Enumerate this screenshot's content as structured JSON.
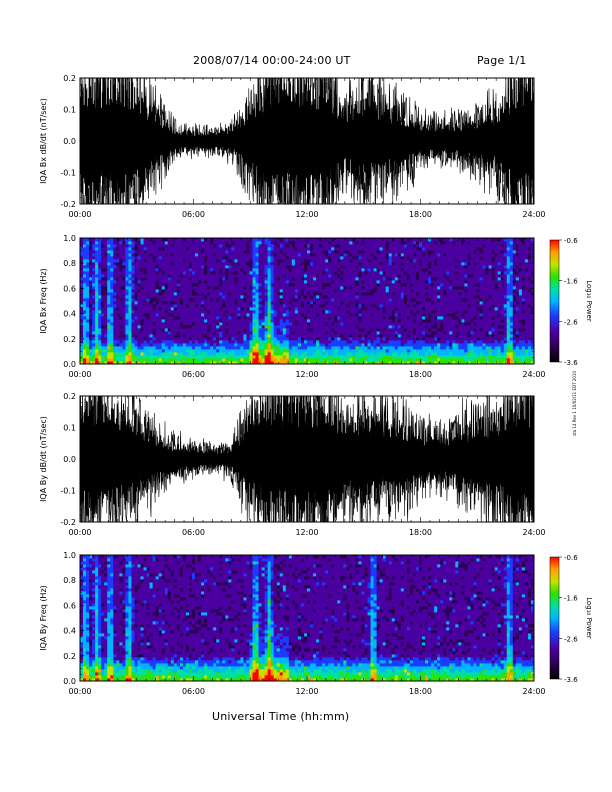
{
  "header": {
    "title": "2008/07/14  00:00-24:00 UT",
    "page": "Page 1/1"
  },
  "side_note": "sta 14 Rev 1 10/02/11 EDT 2010",
  "xaxis": {
    "label": "Universal Time (hh:mm)",
    "ticks": [
      "00:00",
      "06:00",
      "12:00",
      "18:00",
      "24:00"
    ],
    "range_hours": [
      0,
      24
    ]
  },
  "colors": {
    "trace": "#000000",
    "background": "#ffffff",
    "colormap": [
      "#000000",
      "#2b0050",
      "#4b00a0",
      "#1a3cff",
      "#00b4ff",
      "#00e0a0",
      "#30e000",
      "#c8e000",
      "#ffa000",
      "#ff0000"
    ]
  },
  "chart_data": [
    {
      "type": "line",
      "ylabel": "IQA Bx dB/dt (nT/sec)",
      "ylim": [
        -0.2,
        0.2
      ],
      "yticks": [
        "0.2",
        "0.1",
        "0.0",
        "-0.1",
        "-0.2"
      ],
      "xlim": [
        0,
        24
      ],
      "envelope_hours": [
        0,
        1,
        2,
        3,
        4,
        5,
        6,
        7,
        8,
        9,
        10,
        11,
        12,
        13,
        14,
        15,
        16,
        17,
        18,
        19,
        20,
        21,
        22,
        23,
        24
      ],
      "envelope_amplitude": [
        0.2,
        0.2,
        0.2,
        0.18,
        0.1,
        0.04,
        0.03,
        0.03,
        0.04,
        0.12,
        0.2,
        0.2,
        0.2,
        0.2,
        0.1,
        0.15,
        0.12,
        0.1,
        0.06,
        0.05,
        0.06,
        0.08,
        0.1,
        0.2,
        0.2
      ]
    },
    {
      "type": "heatmap",
      "ylabel": "IQA Bx Freq (Hz)",
      "ylim": [
        0.0,
        1.0
      ],
      "yticks": [
        "1.0",
        "0.8",
        "0.6",
        "0.4",
        "0.2",
        "0.0"
      ],
      "xlim": [
        0,
        24
      ],
      "colorbar": {
        "label": "Log₁₀ Power",
        "ticks": [
          "-0.6",
          "-1.6",
          "-2.6",
          "-3.6"
        ],
        "range": [
          -3.6,
          -0.6
        ]
      },
      "bright_bands_hours": [
        0.3,
        0.9,
        1.6,
        2.6,
        9.3,
        10.0,
        22.7
      ]
    },
    {
      "type": "line",
      "ylabel": "IQA By dB/dt (nT/sec)",
      "ylim": [
        -0.2,
        0.2
      ],
      "yticks": [
        "0.2",
        "0.1",
        "0.0",
        "-0.1",
        "-0.2"
      ],
      "xlim": [
        0,
        24
      ],
      "envelope_hours": [
        0,
        1,
        2,
        3,
        4,
        5,
        6,
        7,
        8,
        9,
        10,
        11,
        12,
        13,
        14,
        15,
        16,
        17,
        18,
        19,
        20,
        21,
        22,
        23,
        24
      ],
      "envelope_amplitude": [
        0.2,
        0.2,
        0.16,
        0.14,
        0.08,
        0.05,
        0.04,
        0.03,
        0.04,
        0.14,
        0.2,
        0.2,
        0.2,
        0.2,
        0.12,
        0.15,
        0.13,
        0.12,
        0.09,
        0.07,
        0.1,
        0.12,
        0.14,
        0.2,
        0.2
      ]
    },
    {
      "type": "heatmap",
      "ylabel": "IQA By Freq (Hz)",
      "ylim": [
        0.0,
        1.0
      ],
      "yticks": [
        "1.0",
        "0.8",
        "0.6",
        "0.4",
        "0.2",
        "0.0"
      ],
      "xlim": [
        0,
        24
      ],
      "colorbar": {
        "label": "Log₁₀ Power",
        "ticks": [
          "-0.6",
          "-1.6",
          "-2.6",
          "-3.6"
        ],
        "range": [
          -3.6,
          -0.6
        ]
      },
      "bright_bands_hours": [
        0.3,
        0.9,
        1.6,
        2.6,
        9.3,
        10.0,
        15.5,
        22.7
      ]
    }
  ]
}
